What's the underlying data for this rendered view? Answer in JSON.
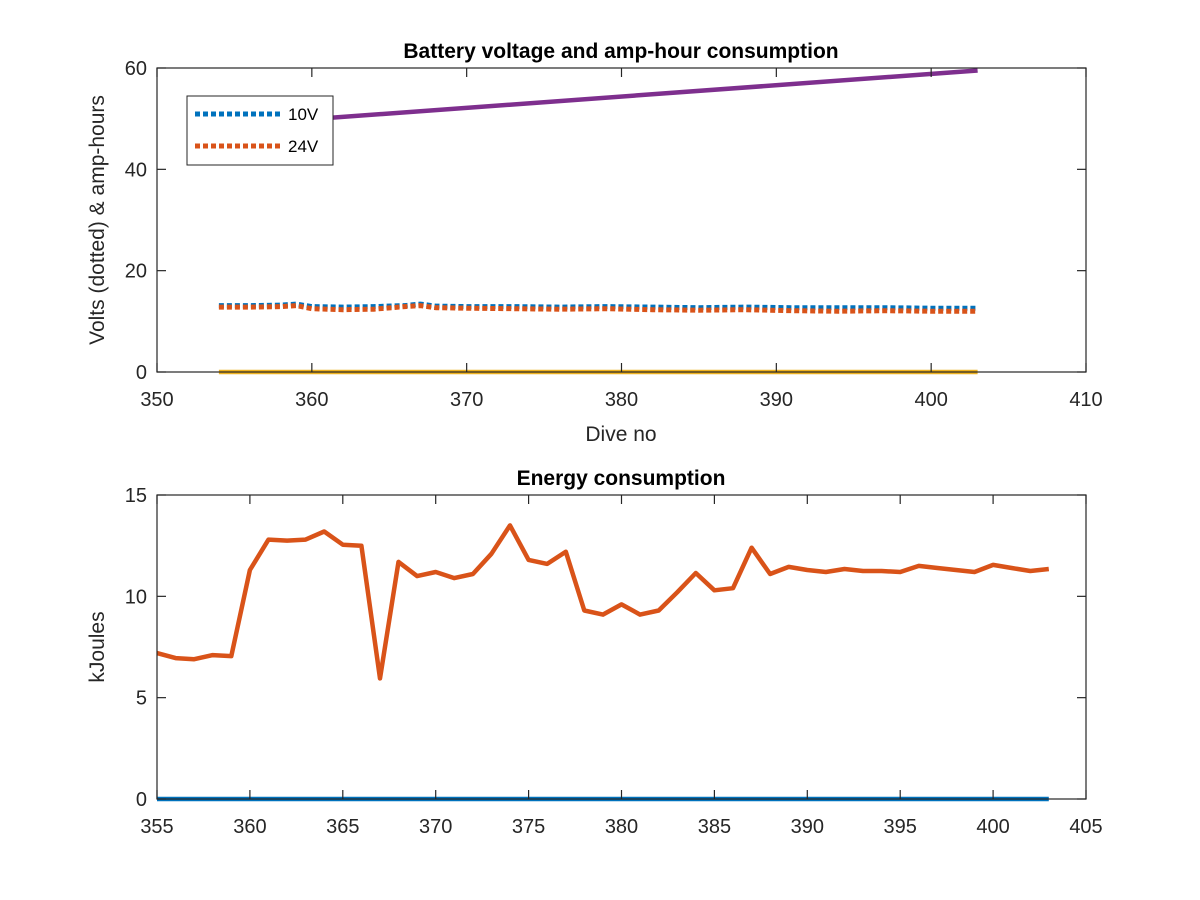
{
  "chart_data": [
    {
      "type": "line",
      "title": "Battery voltage and amp-hour consumption",
      "xlabel": "Dive no",
      "ylabel": "Volts (dotted) & amp-hours",
      "xlim": [
        350,
        410
      ],
      "ylim": [
        0,
        60
      ],
      "xticks": [
        "350",
        "360",
        "370",
        "380",
        "390",
        "400",
        "410"
      ],
      "yticks": [
        "0",
        "20",
        "40",
        "60"
      ],
      "grid": false,
      "legend_position": "top-left",
      "series": [
        {
          "name": "10V",
          "style": "dotted",
          "color": "#0072BD",
          "x": [
            354,
            356,
            358,
            359,
            360,
            362,
            364,
            366,
            367,
            368,
            370,
            373,
            376,
            379,
            382,
            385,
            388,
            391,
            394,
            397,
            400,
            403
          ],
          "y": [
            13.1,
            13.1,
            13.2,
            13.4,
            12.9,
            12.8,
            12.9,
            13.1,
            13.4,
            13.0,
            12.9,
            12.9,
            12.8,
            12.9,
            12.8,
            12.7,
            12.8,
            12.7,
            12.7,
            12.7,
            12.6,
            12.6
          ]
        },
        {
          "name": "24V",
          "style": "dotted",
          "color": "#D95319",
          "x": [
            354,
            356,
            358,
            359,
            360,
            362,
            364,
            366,
            367,
            368,
            370,
            373,
            376,
            379,
            382,
            385,
            388,
            391,
            394,
            397,
            400,
            403
          ],
          "y": [
            12.8,
            12.8,
            12.9,
            13.1,
            12.5,
            12.3,
            12.4,
            12.9,
            13.1,
            12.7,
            12.6,
            12.5,
            12.4,
            12.5,
            12.3,
            12.2,
            12.3,
            12.1,
            12.0,
            12.1,
            12.0,
            12.0
          ]
        },
        {
          "style": "solid",
          "color": "#7E2F8E",
          "x": [
            356,
            403
          ],
          "y": [
            49.0,
            59.5
          ]
        },
        {
          "style": "solid",
          "color": "#EDB120",
          "x": [
            354,
            403
          ],
          "y": [
            0,
            0
          ]
        }
      ]
    },
    {
      "type": "line",
      "title": "Energy consumption",
      "xlabel": "",
      "ylabel": "kJoules",
      "xlim": [
        355,
        405
      ],
      "ylim": [
        0,
        15
      ],
      "xticks": [
        "355",
        "360",
        "365",
        "370",
        "375",
        "380",
        "385",
        "390",
        "395",
        "400",
        "405"
      ],
      "yticks": [
        "0",
        "5",
        "10",
        "15"
      ],
      "grid": false,
      "series": [
        {
          "style": "solid",
          "color": "#D95319",
          "x": [
            355,
            356,
            357,
            358,
            359,
            360,
            361,
            362,
            363,
            364,
            365,
            366,
            367,
            368,
            369,
            370,
            371,
            372,
            373,
            374,
            375,
            376,
            377,
            378,
            379,
            380,
            381,
            382,
            383,
            384,
            385,
            386,
            387,
            388,
            389,
            390,
            391,
            392,
            393,
            394,
            395,
            396,
            397,
            398,
            399,
            400,
            401,
            402,
            403
          ],
          "y": [
            7.2,
            6.95,
            6.9,
            7.1,
            7.05,
            11.3,
            12.8,
            12.75,
            12.8,
            13.2,
            12.55,
            12.5,
            5.95,
            11.7,
            11.0,
            11.2,
            10.9,
            11.1,
            12.1,
            13.5,
            11.8,
            11.6,
            12.2,
            9.3,
            9.1,
            9.6,
            9.1,
            9.3,
            10.2,
            11.15,
            10.3,
            10.4,
            12.4,
            11.1,
            11.45,
            11.3,
            11.2,
            11.35,
            11.25,
            11.25,
            11.2,
            11.5,
            11.4,
            11.3,
            11.2,
            11.55,
            11.4,
            11.25,
            11.35
          ]
        },
        {
          "style": "solid",
          "color": "#0072BD",
          "x": [
            355,
            403
          ],
          "y": [
            0,
            0
          ]
        }
      ]
    }
  ]
}
